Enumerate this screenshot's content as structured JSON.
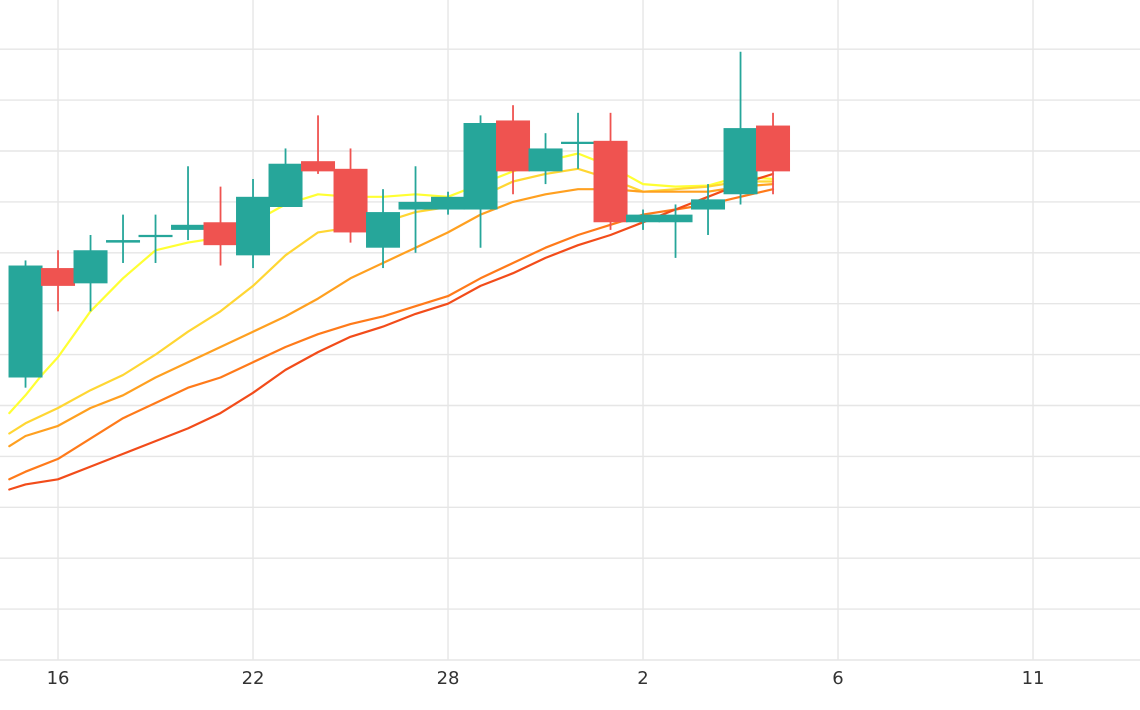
{
  "chart_data": {
    "type": "candlestick",
    "xlabel": "",
    "ylabel": "",
    "grid": true,
    "legend": "none",
    "x_tick_labels": [
      "16",
      "22",
      "28",
      "2",
      "6",
      "11"
    ],
    "x_tick_slots": [
      1.25,
      7.25,
      13.25,
      19.25,
      25.25,
      31.25
    ],
    "y_gridlines": [
      0,
      1,
      2,
      3,
      4,
      5,
      6,
      7,
      8,
      9,
      10,
      11,
      12
    ],
    "ylim": [
      0,
      12.5
    ],
    "colors": {
      "up": "#26a69a",
      "down": "#ef5350",
      "grid": "#e6e6e6",
      "ma": [
        "#ffff33",
        "#ffd633",
        "#ffa020",
        "#ff7a1a",
        "#f24c1a"
      ]
    },
    "candles": [
      {
        "slot": 0.25,
        "open": 5.55,
        "close": 7.75,
        "high": 7.85,
        "low": 5.35
      },
      {
        "slot": 1.25,
        "open": 7.7,
        "close": 7.35,
        "high": 8.05,
        "low": 6.85
      },
      {
        "slot": 2.25,
        "open": 7.4,
        "close": 8.05,
        "high": 8.35,
        "low": 6.85
      },
      {
        "slot": 3.25,
        "open": 8.2,
        "close": 8.25,
        "high": 8.75,
        "low": 7.8
      },
      {
        "slot": 4.25,
        "open": 8.32,
        "close": 8.34,
        "high": 8.75,
        "low": 7.8
      },
      {
        "slot": 5.25,
        "open": 8.45,
        "close": 8.55,
        "high": 9.7,
        "low": 8.25
      },
      {
        "slot": 6.25,
        "open": 8.6,
        "close": 8.15,
        "high": 9.3,
        "low": 7.75
      },
      {
        "slot": 7.25,
        "open": 7.95,
        "close": 9.1,
        "high": 9.45,
        "low": 7.7
      },
      {
        "slot": 8.25,
        "open": 8.9,
        "close": 9.75,
        "high": 10.05,
        "low": 8.9
      },
      {
        "slot": 9.25,
        "open": 9.8,
        "close": 9.6,
        "high": 10.7,
        "low": 9.55
      },
      {
        "slot": 10.25,
        "open": 9.65,
        "close": 8.4,
        "high": 10.05,
        "low": 8.2
      },
      {
        "slot": 11.25,
        "open": 8.1,
        "close": 8.8,
        "high": 9.25,
        "low": 7.7
      },
      {
        "slot": 12.25,
        "open": 8.85,
        "close": 9.0,
        "high": 9.7,
        "low": 8.0
      },
      {
        "slot": 13.25,
        "open": 8.85,
        "close": 9.1,
        "high": 9.2,
        "low": 8.75
      },
      {
        "slot": 14.25,
        "open": 8.85,
        "close": 10.55,
        "high": 10.7,
        "low": 8.1
      },
      {
        "slot": 15.25,
        "open": 10.6,
        "close": 9.6,
        "high": 10.9,
        "low": 9.15
      },
      {
        "slot": 16.25,
        "open": 9.6,
        "close": 10.05,
        "high": 10.35,
        "low": 9.35
      },
      {
        "slot": 17.25,
        "open": 10.15,
        "close": 10.17,
        "high": 10.75,
        "low": 9.65
      },
      {
        "slot": 18.25,
        "open": 10.2,
        "close": 8.6,
        "high": 10.75,
        "low": 8.45
      },
      {
        "slot": 19.25,
        "open": 8.6,
        "close": 8.75,
        "high": 8.85,
        "low": 8.45
      },
      {
        "slot": 20.25,
        "open": 8.6,
        "close": 8.75,
        "high": 8.95,
        "low": 7.9
      },
      {
        "slot": 21.25,
        "open": 8.85,
        "close": 9.05,
        "high": 9.35,
        "low": 8.35
      },
      {
        "slot": 22.25,
        "open": 9.15,
        "close": 10.45,
        "high": 11.95,
        "low": 8.95
      },
      {
        "slot": 23.25,
        "open": 10.5,
        "close": 9.6,
        "high": 10.75,
        "low": 9.15
      }
    ],
    "moving_averages": [
      {
        "color": "#ffff33",
        "points": [
          [
            -0.25,
            4.85
          ],
          [
            0.25,
            5.2
          ],
          [
            0.75,
            5.6
          ],
          [
            1.25,
            5.95
          ],
          [
            1.75,
            6.4
          ],
          [
            2.25,
            6.85
          ],
          [
            3.25,
            7.5
          ],
          [
            4.25,
            8.05
          ],
          [
            5.25,
            8.2
          ],
          [
            6.25,
            8.3
          ],
          [
            7.25,
            8.6
          ],
          [
            8.25,
            8.95
          ],
          [
            9.25,
            9.15
          ],
          [
            10.25,
            9.1
          ],
          [
            11.25,
            9.1
          ],
          [
            12.25,
            9.15
          ],
          [
            13.25,
            9.1
          ],
          [
            14.25,
            9.35
          ],
          [
            15.25,
            9.6
          ],
          [
            16.25,
            9.8
          ],
          [
            17.25,
            9.95
          ],
          [
            18.25,
            9.7
          ],
          [
            19.25,
            9.35
          ],
          [
            20.25,
            9.3
          ],
          [
            21.25,
            9.32
          ],
          [
            22.25,
            9.5
          ],
          [
            23.25,
            9.45
          ]
        ]
      },
      {
        "color": "#ffd633",
        "points": [
          [
            -0.25,
            4.45
          ],
          [
            0.25,
            4.65
          ],
          [
            1.25,
            4.95
          ],
          [
            2.25,
            5.3
          ],
          [
            3.25,
            5.6
          ],
          [
            4.25,
            6.0
          ],
          [
            5.25,
            6.45
          ],
          [
            6.25,
            6.85
          ],
          [
            7.25,
            7.35
          ],
          [
            8.25,
            7.95
          ],
          [
            9.25,
            8.4
          ],
          [
            10.25,
            8.5
          ],
          [
            11.25,
            8.6
          ],
          [
            12.25,
            8.8
          ],
          [
            13.25,
            8.9
          ],
          [
            14.25,
            9.1
          ],
          [
            15.25,
            9.4
          ],
          [
            16.25,
            9.55
          ],
          [
            17.25,
            9.65
          ],
          [
            18.25,
            9.45
          ],
          [
            19.25,
            9.2
          ],
          [
            20.25,
            9.25
          ],
          [
            21.25,
            9.3
          ],
          [
            22.25,
            9.4
          ],
          [
            23.25,
            9.4
          ]
        ]
      },
      {
        "color": "#ffa020",
        "points": [
          [
            -0.25,
            4.2
          ],
          [
            0.25,
            4.4
          ],
          [
            1.25,
            4.6
          ],
          [
            2.25,
            4.95
          ],
          [
            3.25,
            5.2
          ],
          [
            4.25,
            5.55
          ],
          [
            5.25,
            5.85
          ],
          [
            6.25,
            6.15
          ],
          [
            7.25,
            6.45
          ],
          [
            8.25,
            6.75
          ],
          [
            9.25,
            7.1
          ],
          [
            10.25,
            7.5
          ],
          [
            11.25,
            7.8
          ],
          [
            12.25,
            8.1
          ],
          [
            13.25,
            8.4
          ],
          [
            14.25,
            8.75
          ],
          [
            15.25,
            9.0
          ],
          [
            16.25,
            9.15
          ],
          [
            17.25,
            9.25
          ],
          [
            18.25,
            9.25
          ],
          [
            19.25,
            9.2
          ],
          [
            20.25,
            9.2
          ],
          [
            21.25,
            9.2
          ],
          [
            22.25,
            9.3
          ],
          [
            23.25,
            9.35
          ]
        ]
      },
      {
        "color": "#ff7a1a",
        "points": [
          [
            -0.25,
            3.55
          ],
          [
            0.25,
            3.7
          ],
          [
            1.25,
            3.95
          ],
          [
            2.25,
            4.35
          ],
          [
            3.25,
            4.75
          ],
          [
            4.25,
            5.05
          ],
          [
            5.25,
            5.35
          ],
          [
            6.25,
            5.55
          ],
          [
            7.25,
            5.85
          ],
          [
            8.25,
            6.15
          ],
          [
            9.25,
            6.4
          ],
          [
            10.25,
            6.6
          ],
          [
            11.25,
            6.75
          ],
          [
            12.25,
            6.95
          ],
          [
            13.25,
            7.15
          ],
          [
            14.25,
            7.5
          ],
          [
            15.25,
            7.8
          ],
          [
            16.25,
            8.1
          ],
          [
            17.25,
            8.35
          ],
          [
            18.25,
            8.55
          ],
          [
            19.25,
            8.75
          ],
          [
            20.25,
            8.85
          ],
          [
            21.25,
            8.95
          ],
          [
            22.25,
            9.1
          ],
          [
            23.25,
            9.25
          ]
        ]
      },
      {
        "color": "#f24c1a",
        "points": [
          [
            -0.25,
            3.35
          ],
          [
            0.25,
            3.45
          ],
          [
            1.25,
            3.55
          ],
          [
            2.25,
            3.8
          ],
          [
            3.25,
            4.05
          ],
          [
            4.25,
            4.3
          ],
          [
            5.25,
            4.55
          ],
          [
            6.25,
            4.85
          ],
          [
            7.25,
            5.25
          ],
          [
            8.25,
            5.7
          ],
          [
            9.25,
            6.05
          ],
          [
            10.25,
            6.35
          ],
          [
            11.25,
            6.55
          ],
          [
            12.25,
            6.8
          ],
          [
            13.25,
            7.0
          ],
          [
            14.25,
            7.35
          ],
          [
            15.25,
            7.6
          ],
          [
            16.25,
            7.9
          ],
          [
            17.25,
            8.15
          ],
          [
            18.25,
            8.35
          ],
          [
            19.25,
            8.6
          ],
          [
            20.25,
            8.85
          ],
          [
            21.25,
            9.1
          ],
          [
            22.25,
            9.35
          ],
          [
            23.25,
            9.55
          ]
        ]
      }
    ]
  }
}
